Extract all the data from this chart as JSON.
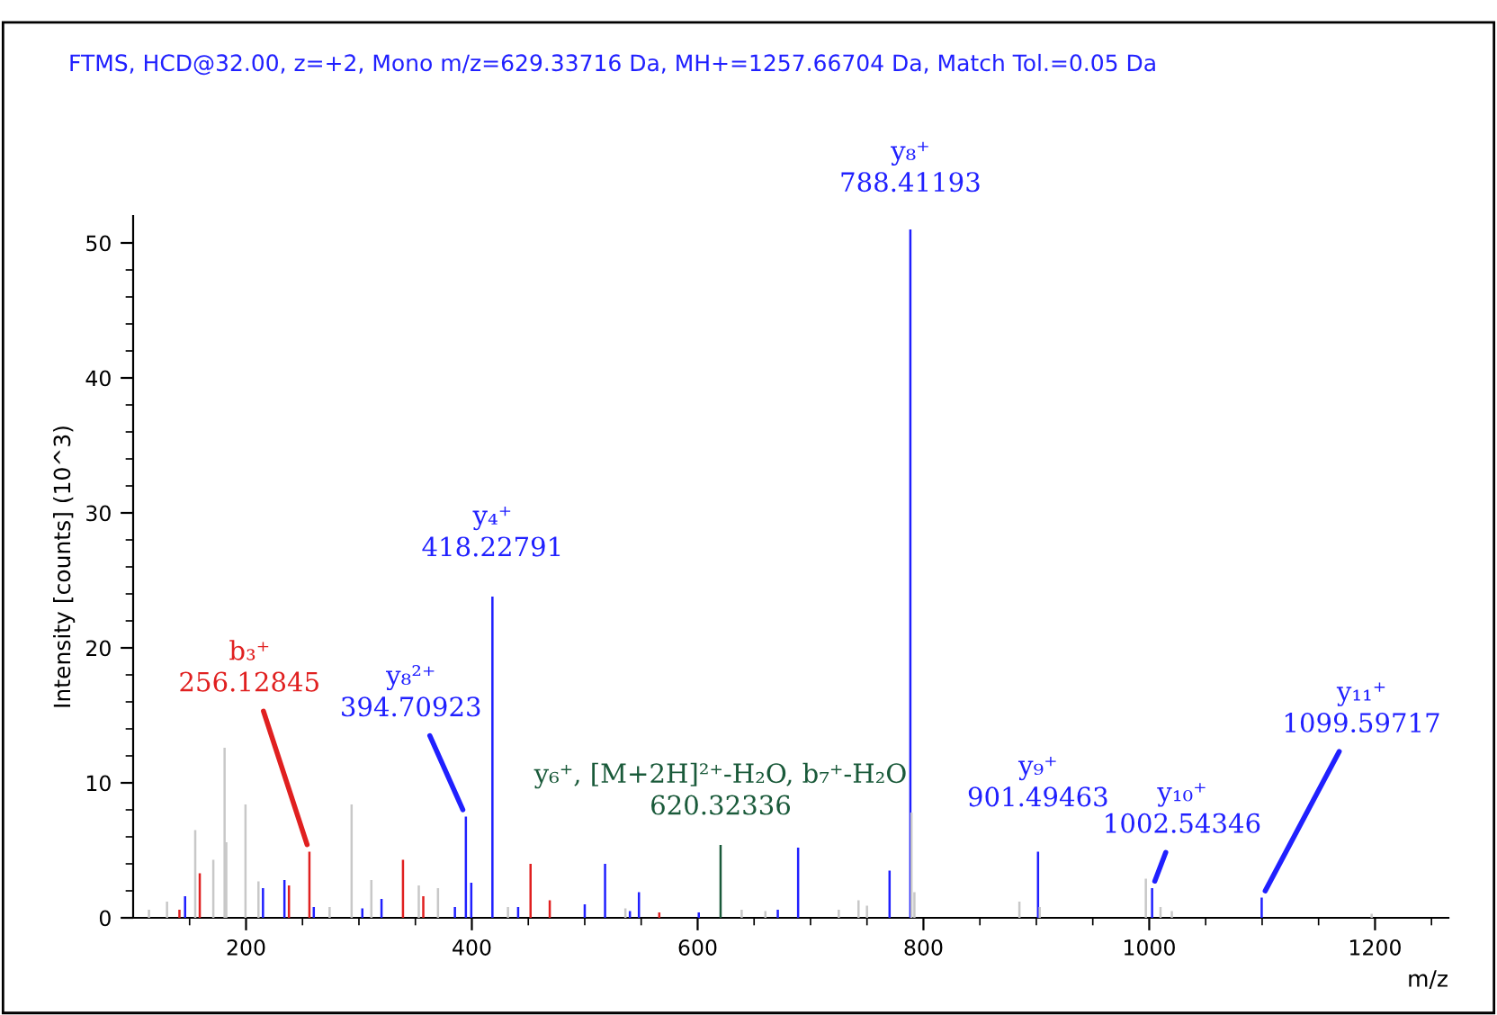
{
  "chart_data": {
    "type": "bar",
    "title": "FTMS, HCD@32.00, z=+2, Mono m/z=629.33716 Da, MH+=1257.66704 Da, Match Tol.=0.05 Da",
    "xlabel": "m/z",
    "ylabel": "Intensity [counts] (10^3)",
    "xlim": [
      100,
      1265
    ],
    "ylim": [
      0,
      52
    ],
    "xticks": [
      200,
      400,
      600,
      800,
      1000,
      1200,
      {
        "value": 150,
        "label": null
      },
      {
        "value": 250,
        "label": null
      },
      {
        "value": 300,
        "label": null
      },
      {
        "value": 350,
        "label": null
      },
      {
        "value": 450,
        "label": null
      },
      {
        "value": 500,
        "label": null
      },
      {
        "value": 550,
        "label": null
      },
      {
        "value": 650,
        "label": null
      },
      {
        "value": 700,
        "label": null
      },
      {
        "value": 750,
        "label": null
      },
      {
        "value": 850,
        "label": null
      },
      {
        "value": 900,
        "label": null
      },
      {
        "value": 950,
        "label": null
      },
      {
        "value": 1050,
        "label": null
      },
      {
        "value": 1100,
        "label": null
      },
      {
        "value": 1150,
        "label": null
      },
      {
        "value": 1250,
        "label": null
      }
    ],
    "yticks": [
      0,
      10,
      20,
      30,
      40,
      50,
      {
        "value": 2,
        "label": null
      },
      {
        "value": 4,
        "label": null
      },
      {
        "value": 6,
        "label": null
      },
      {
        "value": 8,
        "label": null
      },
      {
        "value": 12,
        "label": null
      },
      {
        "value": 14,
        "label": null
      },
      {
        "value": 16,
        "label": null
      },
      {
        "value": 18,
        "label": null
      },
      {
        "value": 22,
        "label": null
      },
      {
        "value": 24,
        "label": null
      },
      {
        "value": 26,
        "label": null
      },
      {
        "value": 28,
        "label": null
      },
      {
        "value": 32,
        "label": null
      },
      {
        "value": 34,
        "label": null
      },
      {
        "value": 36,
        "label": null
      },
      {
        "value": 38,
        "label": null
      },
      {
        "value": 42,
        "label": null
      },
      {
        "value": 44,
        "label": null
      },
      {
        "value": 46,
        "label": null
      },
      {
        "value": 48,
        "label": null
      }
    ],
    "series": [
      {
        "color": "#c8c8c8",
        "x": [
          114,
          130,
          155,
          171,
          181,
          182.5,
          199.5,
          211,
          274,
          293.5,
          311,
          353,
          370,
          432,
          536,
          639,
          660,
          725,
          742.5,
          750,
          789.4,
          792,
          885,
          903,
          997,
          1010,
          1020,
          1197
        ],
        "values": [
          0.6,
          1.2,
          6.5,
          4.3,
          12.6,
          5.6,
          8.4,
          2.7,
          0.8,
          8.4,
          2.8,
          2.4,
          2.2,
          0.8,
          0.7,
          0.6,
          0.5,
          0.6,
          1.3,
          0.9,
          7.8,
          1.9,
          1.2,
          0.8,
          2.9,
          0.8,
          0.5,
          0.3
        ]
      },
      {
        "color": "#e02020",
        "x": [
          141,
          159,
          238,
          256.12845,
          339,
          357,
          452,
          469,
          566
        ],
        "values": [
          0.6,
          3.3,
          2.4,
          4.9,
          4.3,
          1.6,
          4.0,
          1.3,
          0.4
        ]
      },
      {
        "color": "#1a5a3a",
        "x": [
          620.32336
        ],
        "values": [
          5.4
        ]
      },
      {
        "color": "#2020ff",
        "x": [
          146,
          215,
          234,
          260,
          303,
          320,
          385,
          394.70923,
          399.5,
          418.22791,
          441,
          500,
          518,
          540,
          548,
          601,
          671,
          689,
          770,
          788.41193,
          901.49463,
          1002.54346,
          1099.59717
        ],
        "values": [
          1.6,
          2.2,
          2.8,
          0.8,
          0.7,
          1.4,
          0.8,
          7.5,
          2.6,
          23.8,
          0.8,
          1.0,
          4.0,
          0.5,
          1.9,
          0.4,
          0.6,
          5.2,
          3.5,
          51.0,
          4.9,
          2.2,
          1.5
        ]
      }
    ],
    "annotations": [
      {
        "text": "b₃⁺\n256.12845",
        "x": 256.12845,
        "y": 4.9
      },
      {
        "text": "y₈²⁺\n394.70923",
        "x": 394.70923,
        "y": 7.5
      },
      {
        "text": "y₄⁺\n418.22791",
        "x": 418.22791,
        "y": 23.8
      },
      {
        "text": "y₆⁺, [M+2H]²⁺-H₂O, b₇⁺-H₂O\n620.32336",
        "x": 620.32336,
        "y": 5.4
      },
      {
        "text": "y₈⁺\n788.41193",
        "x": 788.41193,
        "y": 51.0
      },
      {
        "text": "y₉⁺\n901.49463",
        "x": 901.49463,
        "y": 4.9
      },
      {
        "text": "y₁₀⁺\n1002.54346",
        "x": 1002.54346,
        "y": 2.2
      },
      {
        "text": "y₁₁⁺\n1099.59717",
        "x": 1099.59717,
        "y": 1.5
      }
    ]
  }
}
